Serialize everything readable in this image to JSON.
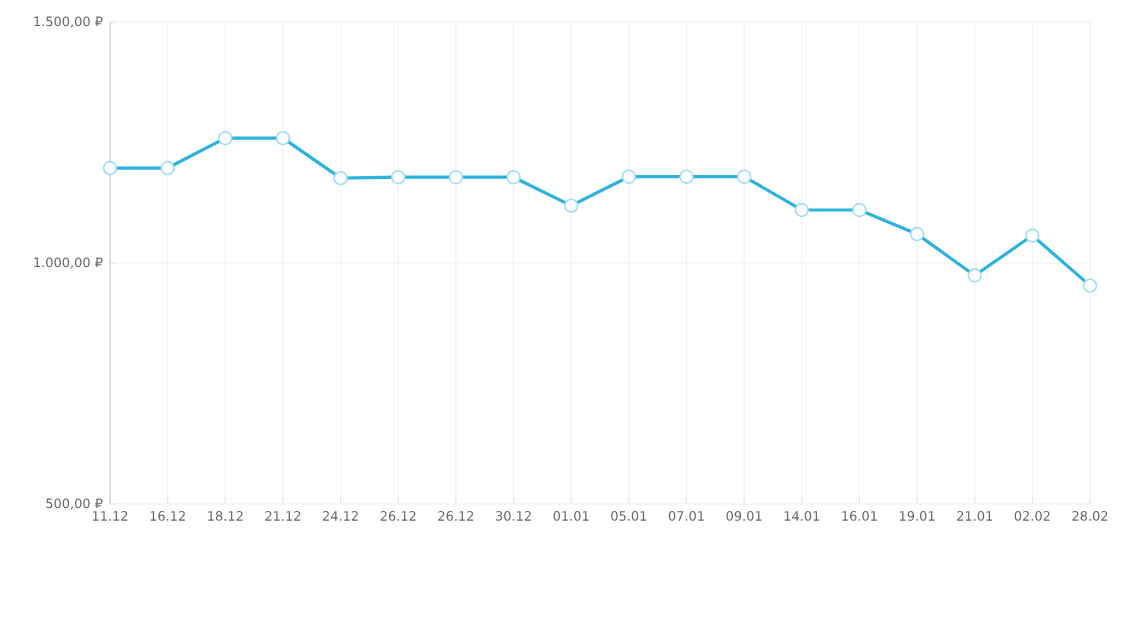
{
  "chart_data": {
    "type": "line",
    "categories": [
      "11.12",
      "16.12",
      "18.12",
      "21.12",
      "24.12",
      "26.12",
      "26.12",
      "30.12",
      "01.01",
      "05.01",
      "07.01",
      "09.01",
      "14.01",
      "16.01",
      "19.01",
      "21.01",
      "02.02",
      "28.02"
    ],
    "series": [
      {
        "color": "#2bb3dc",
        "values": [
          1197,
          1197,
          1259,
          1259,
          1176,
          1178,
          1178,
          1178,
          1119,
          1179,
          1179,
          1179,
          1110,
          1110,
          1060,
          974,
          1057,
          953
        ]
      }
    ],
    "ylim": [
      500,
      1500
    ],
    "yticks": [
      {
        "value": 500,
        "label": "500,00 ₽"
      },
      {
        "value": 1000,
        "label": "1.000,00 ₽"
      },
      {
        "value": 1500,
        "label": "1.500,00 ₽"
      }
    ],
    "grid": true,
    "marker": "circle",
    "line_style": "solid"
  }
}
